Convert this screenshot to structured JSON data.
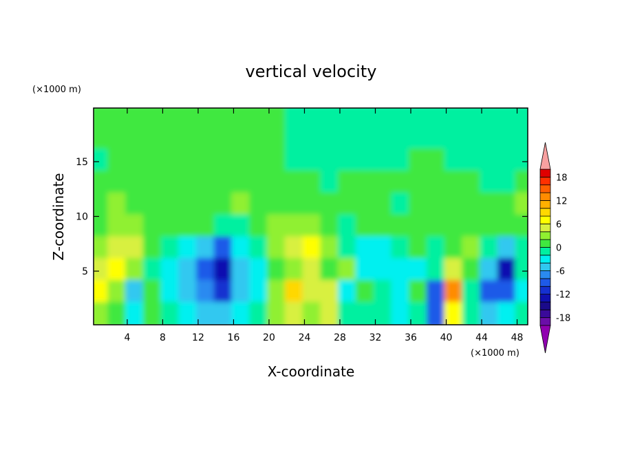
{
  "chart_data": {
    "type": "contour",
    "title": "vertical velocity",
    "x_label": "X-coordinate",
    "y_label": "Z-coordinate",
    "x_unit": "(×1000 m)",
    "y_unit": "(×1000 m)",
    "xlim": [
      0.2,
      49.2
    ],
    "ylim": [
      0.1,
      19.9
    ],
    "xticks": [
      4,
      8,
      12,
      16,
      20,
      24,
      28,
      32,
      36,
      40,
      44,
      48
    ],
    "yticks": [
      5,
      10,
      15
    ],
    "x": [
      1,
      3,
      5,
      7,
      9,
      11,
      13,
      15,
      17,
      19,
      21,
      23,
      25,
      27,
      29,
      31,
      33,
      35,
      37,
      39,
      41,
      43,
      45,
      47,
      49
    ],
    "z": [
      19,
      17,
      15,
      13,
      11,
      9,
      7,
      5,
      3,
      1
    ],
    "values": [
      [
        1,
        1,
        1,
        1,
        1,
        1,
        1,
        1,
        1,
        1,
        1,
        -1,
        -1,
        -1,
        -1,
        -1,
        -1,
        -1,
        -1,
        -1,
        -1,
        -1,
        -1,
        -1,
        -1
      ],
      [
        1,
        1,
        1,
        1,
        1,
        1,
        1,
        1,
        1,
        1,
        1,
        -1,
        -1,
        -1,
        -1,
        -1,
        -1,
        -1,
        -1,
        -1,
        -1,
        -1,
        -1,
        -1,
        -1
      ],
      [
        -1,
        1,
        1,
        1,
        1,
        1,
        1,
        1,
        1,
        1,
        1,
        -1,
        -1,
        -1,
        -1,
        -1,
        -1,
        -1,
        1,
        1,
        -1,
        -1,
        -1,
        -1,
        -1
      ],
      [
        1,
        1,
        1,
        1,
        1,
        1,
        1,
        1,
        1,
        1,
        1,
        1,
        1,
        -1,
        1,
        1,
        1,
        1,
        1,
        1,
        1,
        1,
        -1,
        -1,
        1
      ],
      [
        1,
        3,
        1,
        1,
        1,
        1,
        1,
        1,
        3,
        1,
        1,
        1,
        1,
        1,
        1,
        1,
        1,
        -1,
        1,
        1,
        1,
        1,
        1,
        1,
        3
      ],
      [
        1,
        3,
        3,
        1,
        1,
        1,
        1,
        -1,
        -1,
        1,
        3,
        3,
        3,
        1,
        -1,
        1,
        1,
        1,
        1,
        1,
        1,
        1,
        1,
        1,
        1
      ],
      [
        3,
        5,
        5,
        1,
        -1,
        -3,
        -5,
        -9,
        -3,
        -1,
        3,
        5,
        7,
        3,
        -1,
        -3,
        -3,
        -1,
        1,
        -1,
        1,
        3,
        -1,
        -5,
        -1
      ],
      [
        5,
        7,
        3,
        -1,
        -3,
        -5,
        -9,
        -13,
        -5,
        -3,
        1,
        3,
        5,
        1,
        3,
        -3,
        -3,
        -3,
        -3,
        -1,
        5,
        1,
        -5,
        -13,
        -1
      ],
      [
        7,
        3,
        -5,
        1,
        -3,
        -5,
        -7,
        -11,
        -5,
        -3,
        3,
        9,
        5,
        5,
        -3,
        1,
        -1,
        -3,
        1,
        -9,
        13,
        -1,
        -9,
        -9,
        -3
      ],
      [
        3,
        1,
        -3,
        1,
        -1,
        -3,
        -5,
        -5,
        -3,
        -1,
        3,
        5,
        3,
        5,
        -1,
        -1,
        -1,
        -3,
        -1,
        -9,
        7,
        -1,
        -5,
        -3,
        -1
      ]
    ],
    "levels": [
      -20,
      -18,
      -16,
      -14,
      -12,
      -10,
      -8,
      -6,
      -4,
      -2,
      0,
      2,
      4,
      6,
      8,
      10,
      12,
      14,
      16,
      18,
      20
    ],
    "colors": [
      "#9000b0",
      "#6a0ea8",
      "#3a0a9a",
      "#1a0a8a",
      "#1010b0",
      "#1530d0",
      "#1e5ae8",
      "#2a8af0",
      "#30c8f0",
      "#00f0f0",
      "#00f0a0",
      "#40e840",
      "#90f030",
      "#d8f040",
      "#ffff00",
      "#ffd800",
      "#ffb000",
      "#ff8c00",
      "#ff6000",
      "#ff3000",
      "#e00000",
      "#f8a0a0"
    ],
    "colorbar_ticks": [
      -18,
      -12,
      -6,
      0,
      6,
      12,
      18
    ]
  }
}
